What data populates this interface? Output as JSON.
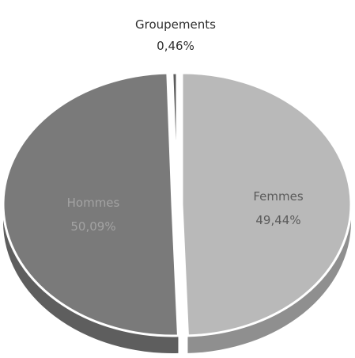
{
  "chart_data": {
    "type": "pie",
    "style": "3d-exploded",
    "slices": [
      {
        "label": "Femmes",
        "value_text": "49,44%",
        "value": 49.44,
        "color": "#b9b9b9",
        "side_color": "#8f8f8f",
        "text_color": "#5b5b5b"
      },
      {
        "label": "Hommes",
        "value_text": "50,09%",
        "value": 50.09,
        "color": "#7a7a7a",
        "side_color": "#5e5e5e",
        "text_color": "#a3a3a3"
      },
      {
        "label": "Groupements",
        "value_text": "0,46%",
        "value": 0.46,
        "color": "#5c5c5c",
        "side_color": "#3f3f3f",
        "text_color": "#2f2f2f"
      }
    ]
  }
}
